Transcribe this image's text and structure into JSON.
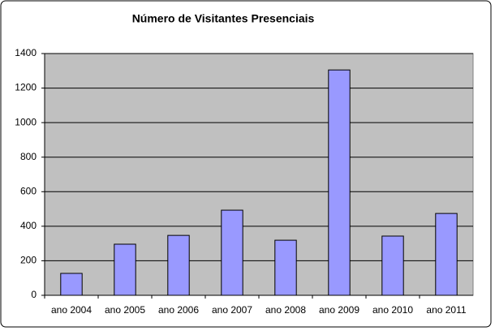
{
  "chart_data": {
    "type": "bar",
    "title": "Número de Visitantes Presenciais",
    "categories": [
      "ano 2004",
      "ano 2005",
      "ano 2006",
      "ano 2007",
      "ano 2008",
      "ano 2009",
      "ano 2010",
      "ano 2011"
    ],
    "values": [
      127,
      296,
      347,
      493,
      319,
      1305,
      343,
      474
    ],
    "color": "#9999ff",
    "ylim": [
      0,
      1400
    ],
    "yticks": [
      0,
      200,
      400,
      600,
      800,
      1000,
      1200,
      1400
    ],
    "grid": true
  }
}
